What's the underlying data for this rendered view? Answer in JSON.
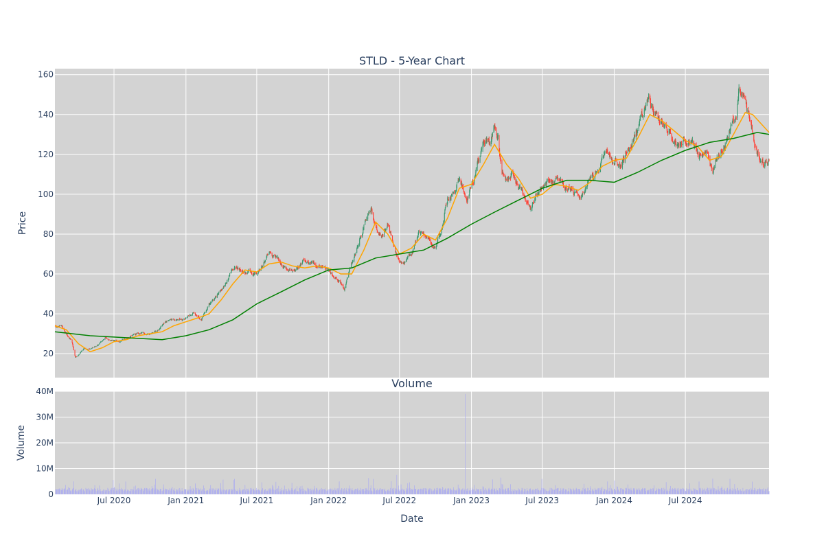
{
  "chart_data": [
    {
      "type": "candlestick",
      "title": "STLD - 5-Year Chart",
      "ylabel": "Price",
      "ylim": [
        8,
        163
      ],
      "yticks": [
        20,
        40,
        60,
        80,
        100,
        120,
        140,
        160
      ],
      "x_range": [
        "2020-02-01",
        "2025-01-31"
      ],
      "grid": true,
      "colors": {
        "background": "#d3d3d3",
        "grid": "#ffffff",
        "up": "#3d9970",
        "down": "#ff4136",
        "ma50": "#ffa500",
        "ma200": "#008000"
      },
      "price_path": [
        [
          "2020-02-01",
          34
        ],
        [
          "2020-02-20",
          33
        ],
        [
          "2020-03-05",
          29
        ],
        [
          "2020-03-15",
          27
        ],
        [
          "2020-03-24",
          18
        ],
        [
          "2020-04-01",
          19
        ],
        [
          "2020-04-15",
          22
        ],
        [
          "2020-05-10",
          23
        ],
        [
          "2020-06-01",
          26
        ],
        [
          "2020-06-10",
          28
        ],
        [
          "2020-07-01",
          26
        ],
        [
          "2020-08-01",
          28
        ],
        [
          "2020-09-01",
          30
        ],
        [
          "2020-10-01",
          30
        ],
        [
          "2020-10-20",
          31
        ],
        [
          "2020-11-10",
          36
        ],
        [
          "2020-12-01",
          37
        ],
        [
          "2021-01-01",
          38
        ],
        [
          "2021-01-20",
          40
        ],
        [
          "2021-02-10",
          37
        ],
        [
          "2021-03-01",
          45
        ],
        [
          "2021-04-01",
          51
        ],
        [
          "2021-05-01",
          62
        ],
        [
          "2021-05-10",
          65
        ],
        [
          "2021-06-01",
          61
        ],
        [
          "2021-07-01",
          60
        ],
        [
          "2021-08-01",
          70
        ],
        [
          "2021-09-01",
          66
        ],
        [
          "2021-10-01",
          60
        ],
        [
          "2021-11-01",
          67
        ],
        [
          "2021-12-01",
          65
        ],
        [
          "2022-01-01",
          62
        ],
        [
          "2022-01-25",
          58
        ],
        [
          "2022-02-10",
          53
        ],
        [
          "2022-03-01",
          65
        ],
        [
          "2022-04-01",
          85
        ],
        [
          "2022-04-20",
          91
        ],
        [
          "2022-05-15",
          78
        ],
        [
          "2022-06-01",
          86
        ],
        [
          "2022-06-20",
          70
        ],
        [
          "2022-07-10",
          65
        ],
        [
          "2022-08-01",
          70
        ],
        [
          "2022-08-20",
          82
        ],
        [
          "2022-09-15",
          76
        ],
        [
          "2022-10-01",
          72
        ],
        [
          "2022-10-20",
          85
        ],
        [
          "2022-11-01",
          97
        ],
        [
          "2022-12-01",
          108
        ],
        [
          "2022-12-20",
          98
        ],
        [
          "2023-01-10",
          110
        ],
        [
          "2023-02-01",
          125
        ],
        [
          "2023-02-20",
          130
        ],
        [
          "2023-03-01",
          136
        ],
        [
          "2023-03-10",
          128
        ],
        [
          "2023-03-20",
          108
        ],
        [
          "2023-04-15",
          110
        ],
        [
          "2023-05-15",
          98
        ],
        [
          "2023-06-01",
          95
        ],
        [
          "2023-07-01",
          104
        ],
        [
          "2023-08-01",
          107
        ],
        [
          "2023-09-01",
          104
        ],
        [
          "2023-10-01",
          100
        ],
        [
          "2023-10-20",
          103
        ],
        [
          "2023-11-15",
          112
        ],
        [
          "2023-12-15",
          120
        ],
        [
          "2024-01-15",
          115
        ],
        [
          "2024-02-15",
          125
        ],
        [
          "2024-03-10",
          138
        ],
        [
          "2024-04-01",
          148
        ],
        [
          "2024-04-20",
          138
        ],
        [
          "2024-05-15",
          132
        ],
        [
          "2024-06-10",
          124
        ],
        [
          "2024-07-15",
          128
        ],
        [
          "2024-08-05",
          118
        ],
        [
          "2024-08-25",
          124
        ],
        [
          "2024-09-10",
          112
        ],
        [
          "2024-10-01",
          122
        ],
        [
          "2024-10-20",
          130
        ],
        [
          "2024-11-08",
          140
        ],
        [
          "2024-11-15",
          152
        ],
        [
          "2024-12-01",
          145
        ],
        [
          "2024-12-20",
          130
        ],
        [
          "2025-01-05",
          118
        ],
        [
          "2025-01-31",
          116
        ]
      ],
      "series": [
        {
          "id": "ma50",
          "values": [
            [
              "2020-02-01",
              34
            ],
            [
              "2020-03-01",
              32
            ],
            [
              "2020-04-01",
              25
            ],
            [
              "2020-05-01",
              21
            ],
            [
              "2020-06-01",
              23
            ],
            [
              "2020-07-01",
              26
            ],
            [
              "2020-08-01",
              27
            ],
            [
              "2020-09-01",
              29
            ],
            [
              "2020-10-01",
              30
            ],
            [
              "2020-11-01",
              31
            ],
            [
              "2020-12-01",
              34
            ],
            [
              "2021-01-01",
              36
            ],
            [
              "2021-02-01",
              38
            ],
            [
              "2021-03-01",
              40
            ],
            [
              "2021-04-01",
              47
            ],
            [
              "2021-05-01",
              55
            ],
            [
              "2021-06-01",
              62
            ],
            [
              "2021-07-01",
              61
            ],
            [
              "2021-08-01",
              65
            ],
            [
              "2021-09-01",
              66
            ],
            [
              "2021-10-01",
              64
            ],
            [
              "2021-11-01",
              63
            ],
            [
              "2021-12-01",
              64
            ],
            [
              "2022-01-01",
              63
            ],
            [
              "2022-02-01",
              60
            ],
            [
              "2022-03-01",
              60
            ],
            [
              "2022-04-01",
              72
            ],
            [
              "2022-05-01",
              86
            ],
            [
              "2022-06-01",
              80
            ],
            [
              "2022-07-01",
              70
            ],
            [
              "2022-08-01",
              73
            ],
            [
              "2022-09-01",
              80
            ],
            [
              "2022-10-01",
              77
            ],
            [
              "2022-11-01",
              88
            ],
            [
              "2022-12-01",
              103
            ],
            [
              "2023-01-01",
              105
            ],
            [
              "2023-02-01",
              115
            ],
            [
              "2023-03-01",
              125
            ],
            [
              "2023-04-01",
              115
            ],
            [
              "2023-05-01",
              108
            ],
            [
              "2023-06-01",
              98
            ],
            [
              "2023-07-01",
              100
            ],
            [
              "2023-08-01",
              105
            ],
            [
              "2023-09-01",
              104
            ],
            [
              "2023-10-01",
              102
            ],
            [
              "2023-11-01",
              106
            ],
            [
              "2023-12-01",
              114
            ],
            [
              "2024-01-01",
              117
            ],
            [
              "2024-02-01",
              118
            ],
            [
              "2024-03-01",
              128
            ],
            [
              "2024-04-01",
              140
            ],
            [
              "2024-05-01",
              137
            ],
            [
              "2024-06-01",
              132
            ],
            [
              "2024-07-01",
              127
            ],
            [
              "2024-08-01",
              124
            ],
            [
              "2024-09-01",
              117
            ],
            [
              "2024-10-01",
              119
            ],
            [
              "2024-11-01",
              130
            ],
            [
              "2024-12-01",
              141
            ],
            [
              "2024-12-20",
              140
            ],
            [
              "2025-01-31",
              131
            ]
          ]
        },
        {
          "id": "ma200",
          "values": [
            [
              "2020-02-01",
              31
            ],
            [
              "2020-05-01",
              29
            ],
            [
              "2020-08-01",
              28
            ],
            [
              "2020-11-01",
              27
            ],
            [
              "2021-01-01",
              29
            ],
            [
              "2021-03-01",
              32
            ],
            [
              "2021-05-01",
              37
            ],
            [
              "2021-07-01",
              45
            ],
            [
              "2021-09-01",
              51
            ],
            [
              "2021-11-01",
              57
            ],
            [
              "2022-01-01",
              62
            ],
            [
              "2022-03-01",
              63
            ],
            [
              "2022-05-01",
              68
            ],
            [
              "2022-07-01",
              70
            ],
            [
              "2022-09-01",
              72
            ],
            [
              "2022-11-01",
              78
            ],
            [
              "2023-01-01",
              85
            ],
            [
              "2023-03-01",
              91
            ],
            [
              "2023-05-01",
              97
            ],
            [
              "2023-07-01",
              103
            ],
            [
              "2023-09-01",
              107
            ],
            [
              "2023-11-01",
              107
            ],
            [
              "2024-01-01",
              106
            ],
            [
              "2024-03-01",
              111
            ],
            [
              "2024-05-01",
              117
            ],
            [
              "2024-07-01",
              122
            ],
            [
              "2024-09-01",
              126
            ],
            [
              "2024-11-01",
              128
            ],
            [
              "2025-01-01",
              131
            ],
            [
              "2025-01-31",
              130
            ]
          ]
        }
      ]
    },
    {
      "type": "bar",
      "title": "Volume",
      "xlabel": "Date",
      "ylabel": "Volume",
      "ylim": [
        0,
        40000000
      ],
      "yticks": [
        {
          "value": 0,
          "label": "0"
        },
        {
          "value": 10000000,
          "label": "10M"
        },
        {
          "value": 20000000,
          "label": "20M"
        },
        {
          "value": 30000000,
          "label": "30M"
        },
        {
          "value": 40000000,
          "label": "40M"
        }
      ],
      "xticks": [
        {
          "date": "2020-07-01",
          "label": "Jul 2020"
        },
        {
          "date": "2021-01-01",
          "label": "Jan 2021"
        },
        {
          "date": "2021-07-01",
          "label": "Jul 2021"
        },
        {
          "date": "2022-01-01",
          "label": "Jan 2022"
        },
        {
          "date": "2022-07-01",
          "label": "Jul 2022"
        },
        {
          "date": "2023-01-01",
          "label": "Jan 2023"
        },
        {
          "date": "2023-07-01",
          "label": "Jul 2023"
        },
        {
          "date": "2024-01-01",
          "label": "Jan 2024"
        },
        {
          "date": "2024-07-01",
          "label": "Jul 2024"
        }
      ],
      "bar_color": "#b0b0ee",
      "typical_volume": 2000000,
      "spikes": [
        [
          "2020-03-20",
          5000000
        ],
        [
          "2020-10-15",
          6000000
        ],
        [
          "2021-05-05",
          6000000
        ],
        [
          "2022-01-28",
          5000000
        ],
        [
          "2022-04-25",
          6000000
        ],
        [
          "2022-06-24",
          7500000
        ],
        [
          "2022-12-16",
          39000000
        ],
        [
          "2023-03-17",
          6500000
        ],
        [
          "2023-06-30",
          6000000
        ],
        [
          "2023-12-15",
          5000000
        ],
        [
          "2024-10-23",
          6000000
        ]
      ]
    }
  ]
}
